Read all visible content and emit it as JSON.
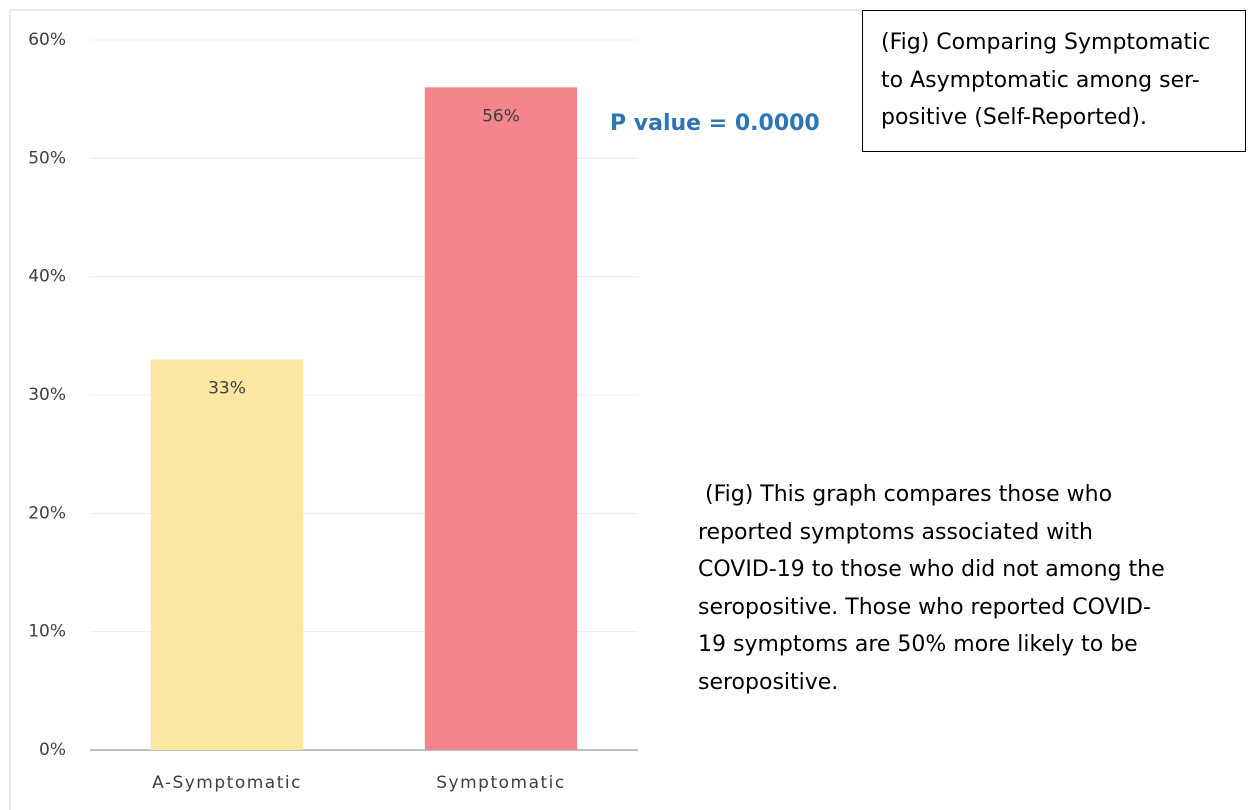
{
  "chart_data": {
    "type": "bar",
    "title": "(Fig) Comparing Symptomatic to Asymptomatic among ser-positive (Self-Reported).",
    "annotations": [
      "P value = 0.0000",
      " (Fig) This graph compares those who reported symptoms associated with COVID-19 to those who did not among the seropositive. Those who reported COVID-19 symptoms are 50% more likely to be seropositive."
    ],
    "categories": [
      "A-Symptomatic",
      "Symptomatic"
    ],
    "values": [
      33,
      56
    ],
    "value_labels": [
      "33%",
      "56%"
    ],
    "colors": [
      "#fbe6a2",
      "#f5858c"
    ],
    "ylim": [
      0,
      60
    ],
    "yticks": [
      {
        "value": 0,
        "label": "0%"
      },
      {
        "value": 10,
        "label": "10%"
      },
      {
        "value": 20,
        "label": "20%"
      },
      {
        "value": 30,
        "label": "30%"
      },
      {
        "value": 40,
        "label": "40%"
      },
      {
        "value": 50,
        "label": "50%"
      },
      {
        "value": 60,
        "label": "60%"
      }
    ],
    "grid": true
  }
}
